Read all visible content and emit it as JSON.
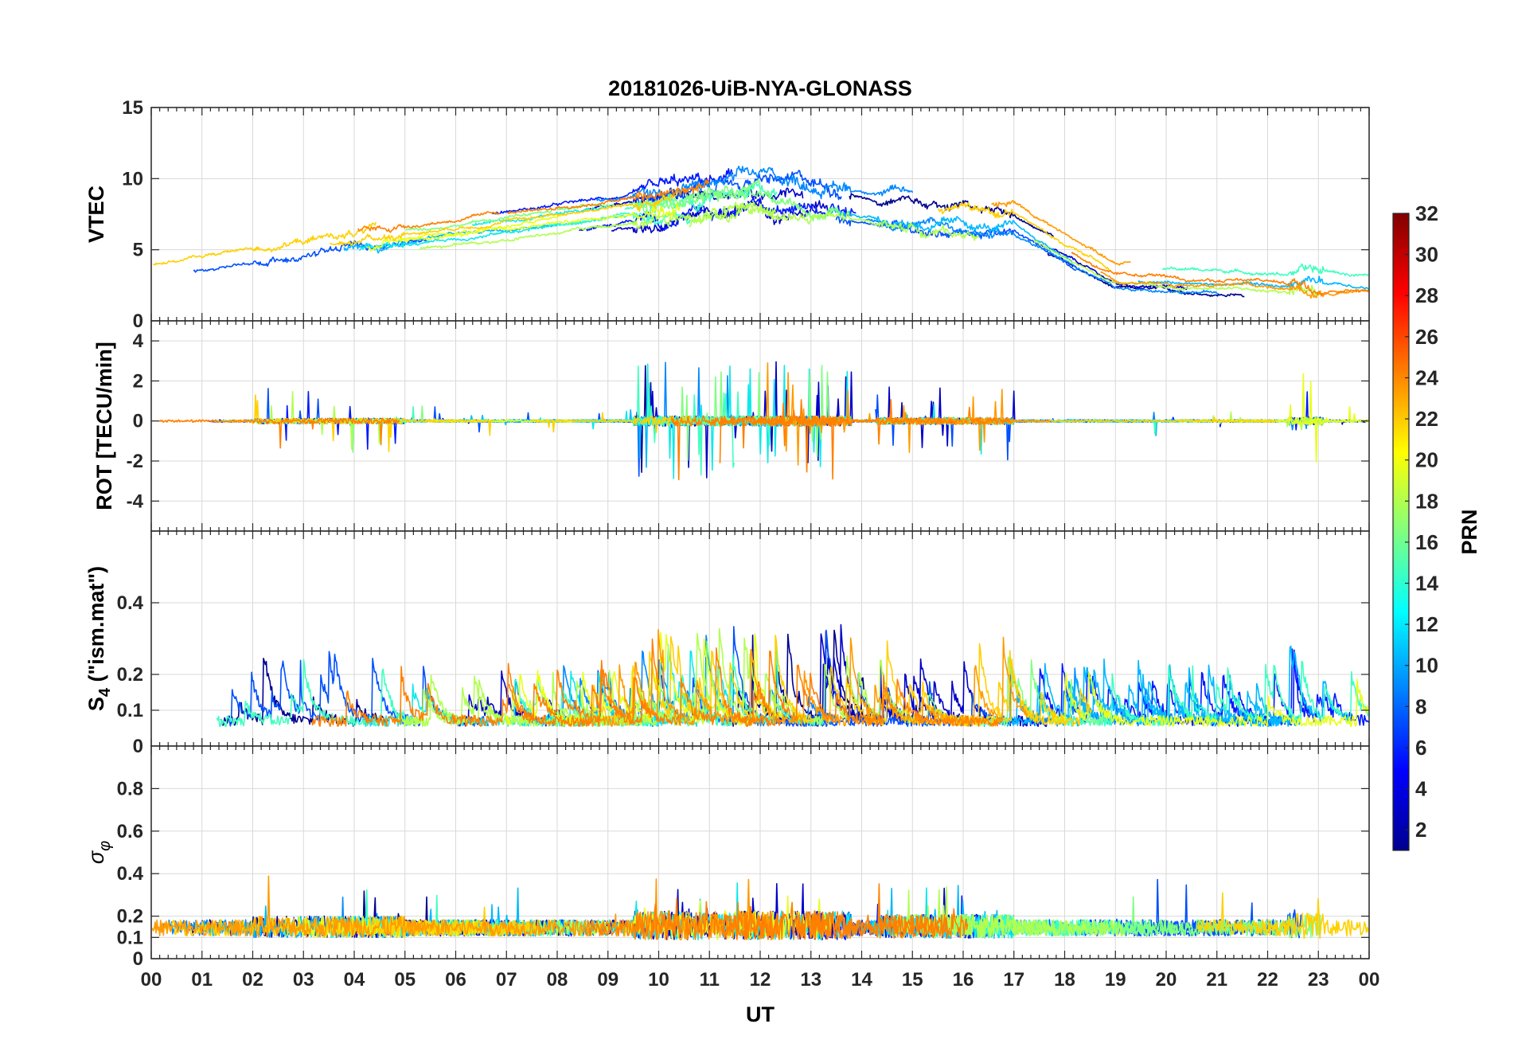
{
  "chart_data": {
    "type": "line",
    "title": "20181026-UiB-NYA-GLONASS",
    "xlabel": "UT",
    "x_tick_labels": [
      "00",
      "01",
      "02",
      "03",
      "04",
      "05",
      "06",
      "07",
      "08",
      "09",
      "10",
      "11",
      "12",
      "13",
      "14",
      "15",
      "16",
      "17",
      "18",
      "19",
      "20",
      "21",
      "22",
      "23",
      "00"
    ],
    "xlim": [
      0,
      24
    ],
    "grid": true,
    "panels": [
      {
        "id": "vtec",
        "ylabel": "VTEC",
        "ylim": [
          0,
          15
        ],
        "yticks": [
          0,
          5,
          10,
          15
        ],
        "ytick_labels": [
          "0",
          "5",
          "10",
          "15"
        ],
        "profile": {
          "kind": "vtec"
        }
      },
      {
        "id": "rot",
        "ylabel": "ROT [TECU/min]",
        "ylim": [
          -5.5,
          5
        ],
        "yticks": [
          -4,
          -2,
          0,
          2,
          4
        ],
        "ytick_labels": [
          "-4",
          "-2",
          "0",
          "2",
          "4"
        ],
        "profile": {
          "kind": "rot"
        }
      },
      {
        "id": "s4",
        "ylabel_main": "S",
        "ylabel_sub": "4",
        "ylabel_rest": " (\"ism.mat\")",
        "ylim": [
          0,
          0.6
        ],
        "yticks": [
          0,
          0.1,
          0.2,
          0.4
        ],
        "ytick_labels": [
          "0",
          "0.1",
          "0.2",
          "0.4"
        ],
        "profile": {
          "kind": "s4"
        }
      },
      {
        "id": "sigma",
        "ylabel_main": "σ",
        "ylabel_sub": "φ",
        "ylim": [
          0,
          1
        ],
        "yticks": [
          0,
          0.1,
          0.2,
          0.4,
          0.6,
          0.8
        ],
        "ytick_labels": [
          "0",
          "0.1",
          "0.2",
          "0.4",
          "0.6",
          "0.8"
        ],
        "profile": {
          "kind": "sigma"
        }
      }
    ],
    "series": [
      {
        "name": "PRN 1",
        "prn": 1,
        "color": "#00008f"
      },
      {
        "name": "PRN 2",
        "prn": 2,
        "color": "#0000c8"
      },
      {
        "name": "PRN 3",
        "prn": 3,
        "color": "#0018ff"
      },
      {
        "name": "PRN 5",
        "prn": 5,
        "color": "#0050ff"
      },
      {
        "name": "PRN 7",
        "prn": 7,
        "color": "#0088ff"
      },
      {
        "name": "PRN 9",
        "prn": 9,
        "color": "#00b8ff"
      },
      {
        "name": "PRN 11",
        "prn": 11,
        "color": "#10e8e8"
      },
      {
        "name": "PRN 13",
        "prn": 13,
        "color": "#40ffc0"
      },
      {
        "name": "PRN 15",
        "prn": 15,
        "color": "#80ff80"
      },
      {
        "name": "PRN 17",
        "prn": 17,
        "color": "#b0ff50"
      },
      {
        "name": "PRN 19",
        "prn": 19,
        "color": "#e8ff18"
      },
      {
        "name": "PRN 21",
        "prn": 21,
        "color": "#ffd000"
      },
      {
        "name": "PRN 23",
        "prn": 23,
        "color": "#ff9a00"
      },
      {
        "name": "PRN 24",
        "prn": 24,
        "color": "#ff8000"
      }
    ],
    "colorbar": {
      "label": "PRN",
      "range": [
        1,
        32
      ],
      "tick_labels": [
        "2",
        "4",
        "6",
        "8",
        "10",
        "12",
        "14",
        "16",
        "18",
        "20",
        "22",
        "24",
        "26",
        "28",
        "30",
        "32"
      ],
      "tick_values": [
        2,
        4,
        6,
        8,
        10,
        12,
        14,
        16,
        18,
        20,
        22,
        24,
        26,
        28,
        30,
        32
      ],
      "colormap": "jet",
      "colormap_stops": [
        "#00008f",
        "#0000ff",
        "#0080ff",
        "#00ffff",
        "#80ff80",
        "#ffff00",
        "#ff8000",
        "#ff0000",
        "#800000"
      ]
    }
  }
}
